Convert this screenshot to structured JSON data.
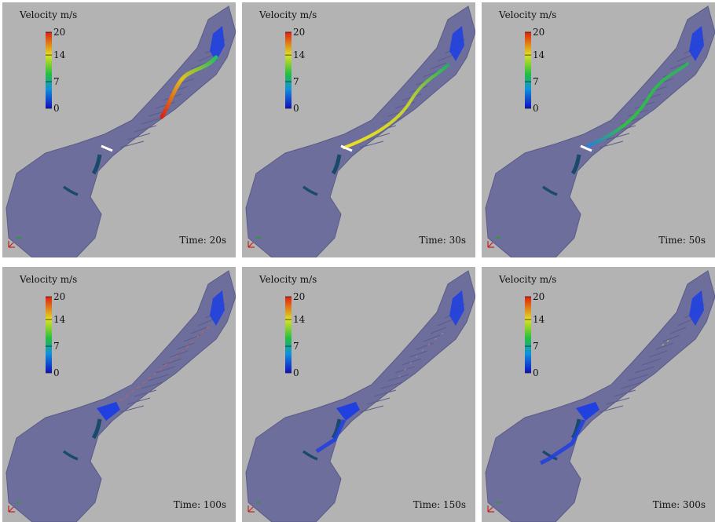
{
  "colorbar": {
    "title": "Velocity m/s",
    "min": 0,
    "max": 20,
    "ticks": [
      0,
      7,
      14,
      20
    ]
  },
  "panels": [
    {
      "time": "Time: 20s"
    },
    {
      "time": "Time: 30s"
    },
    {
      "time": "Time: 50s"
    },
    {
      "time": "Time: 100s"
    },
    {
      "time": "Time: 150s"
    },
    {
      "time": "Time: 300s"
    }
  ]
}
